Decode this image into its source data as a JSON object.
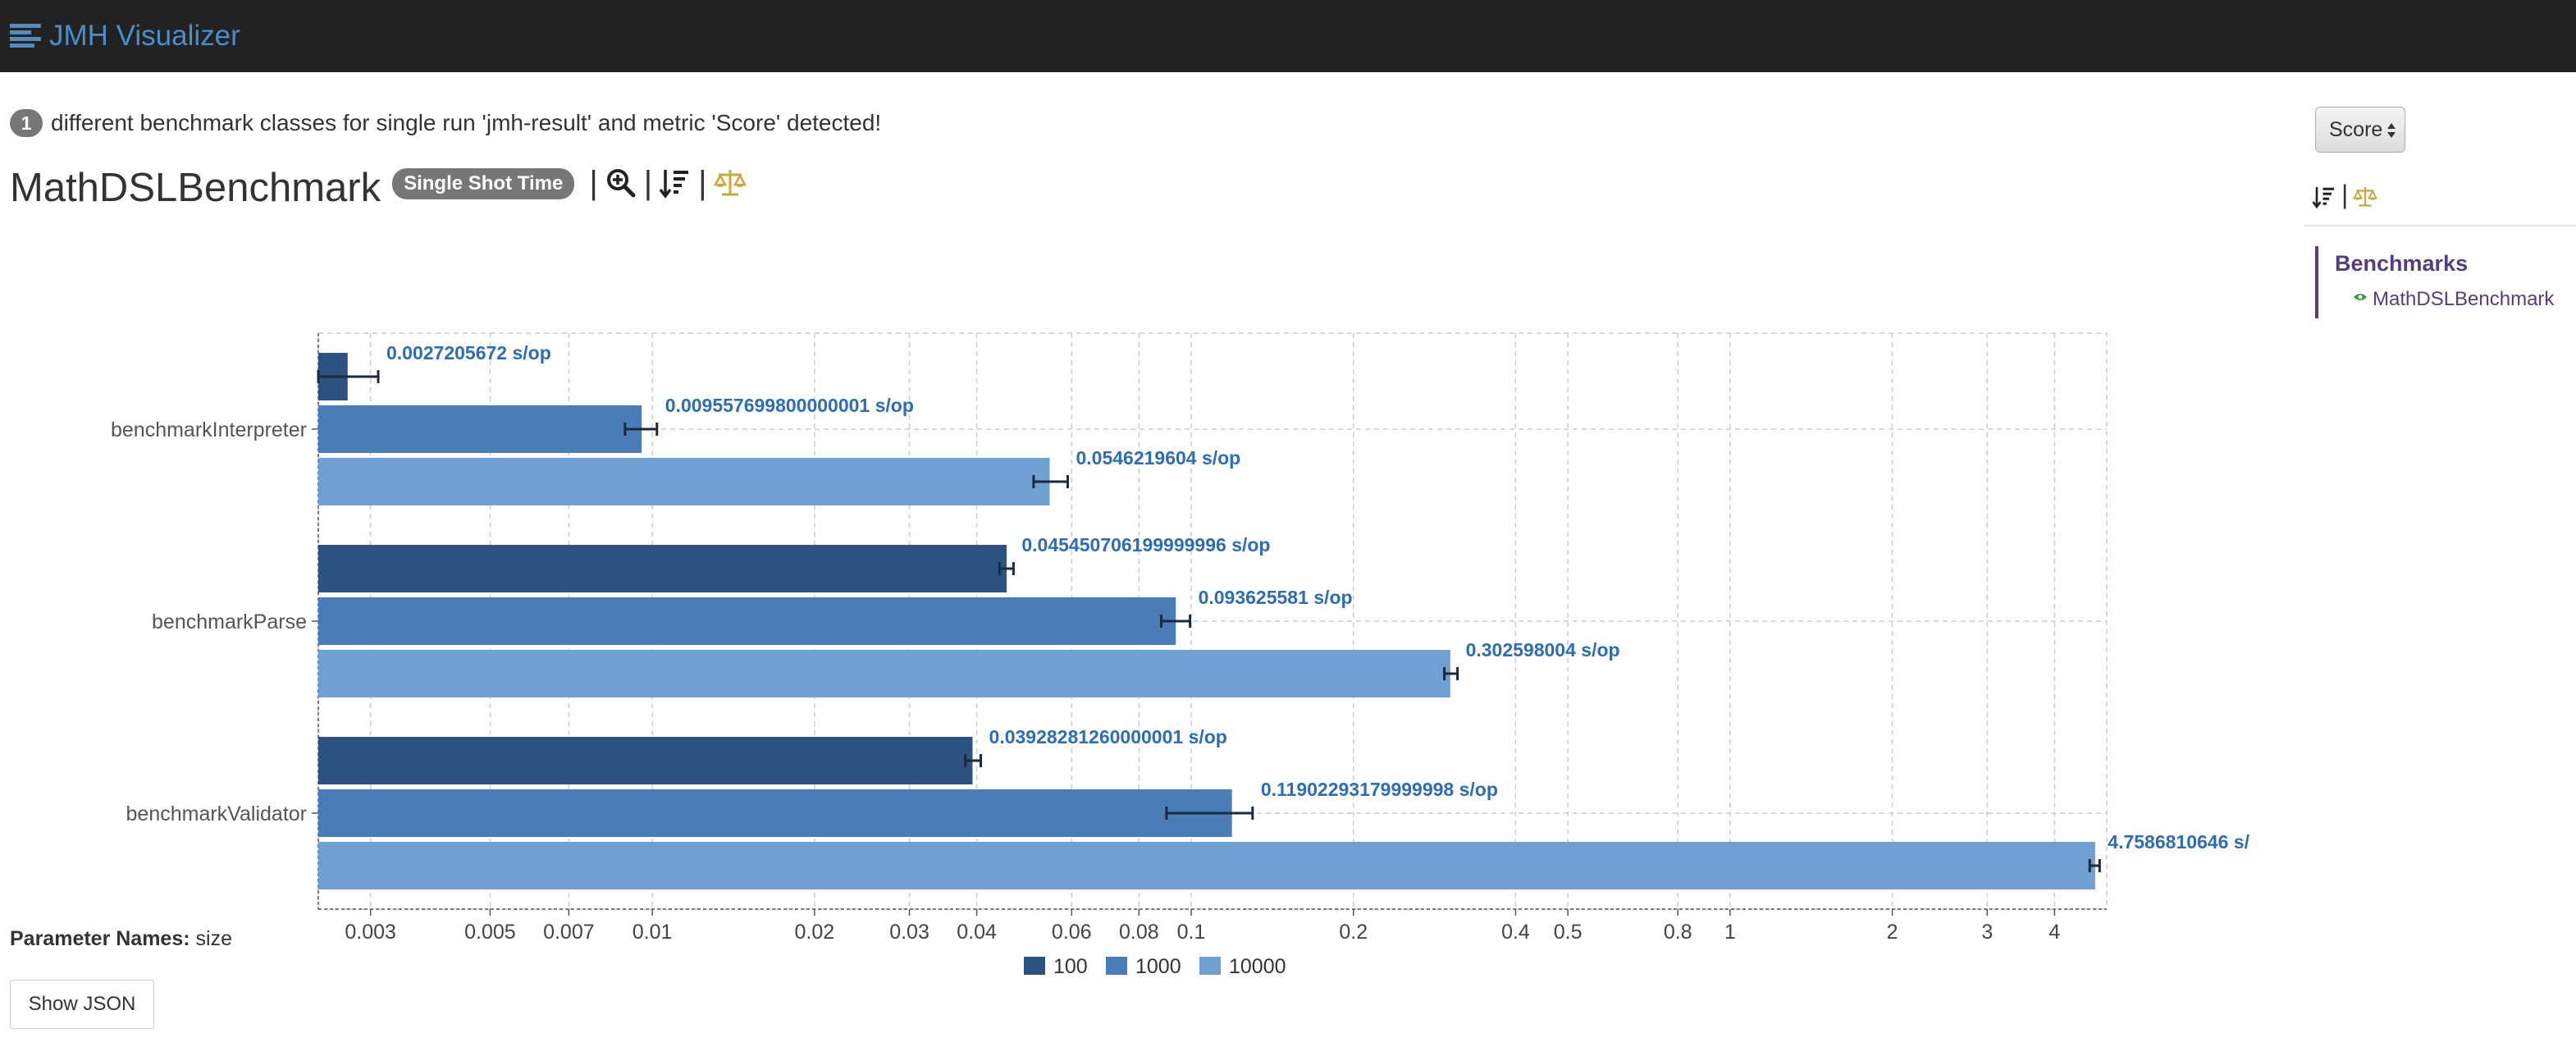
{
  "navbar": {
    "brand": "JMH Visualizer",
    "icon": "bars-icon"
  },
  "info": {
    "count": "1",
    "message": "different benchmark classes for single run 'jmh-result' and metric 'Score' detected!"
  },
  "benchmark": {
    "title": "MathDSLBenchmark",
    "mode_badge": "Single Shot Time",
    "tools": [
      "zoom-in-icon",
      "sort-icon",
      "balance-scale-icon"
    ]
  },
  "colors": {
    "series_100": "#2c5282",
    "series_1000": "#4a7db8",
    "series_10000": "#6fa0d1",
    "label_blue": "#2e6db4",
    "accent_gold": "#c8a83c",
    "purple": "#563d7c"
  },
  "chart_data": {
    "type": "bar",
    "orientation": "horizontal",
    "x_scale": "log",
    "xlim": [
      0.0024,
      5.0
    ],
    "grid": true,
    "categories": [
      "benchmarkInterpreter",
      "benchmarkParse",
      "benchmarkValidator"
    ],
    "series": [
      {
        "name": "100",
        "values": [
          0.0027205672,
          0.045450706199999996,
          0.0392828126
        ],
        "errors": [
          [
            0.0024,
            0.0031
          ],
          [
            0.0441,
            0.0468
          ],
          [
            0.0381,
            0.0407
          ]
        ]
      },
      {
        "name": "1000",
        "values": [
          0.009557699800000001,
          0.093625581,
          0.1190229318
        ],
        "errors": [
          [
            0.0089,
            0.0102
          ],
          [
            0.088,
            0.0995
          ],
          [
            0.09,
            0.13
          ]
        ]
      },
      {
        "name": "10000",
        "values": [
          0.0546219604,
          0.302598004,
          4.7586810646
        ],
        "errors": [
          [
            0.051,
            0.059
          ],
          [
            0.295,
            0.312
          ],
          [
            4.65,
            4.85
          ]
        ]
      }
    ],
    "value_labels": [
      [
        "0.0027205672 s/op",
        "0.045450706199999996 s/op",
        "0.03928281260000001 s/op"
      ],
      [
        "0.009557699800000001 s/op",
        "0.093625581 s/op",
        "0.11902293179999998 s/op"
      ],
      [
        "0.0546219604 s/op",
        "0.302598004 s/op",
        "4.7586810646 s/"
      ]
    ],
    "tick_values": [
      0.003,
      0.005,
      0.007,
      0.01,
      0.02,
      0.03,
      0.04,
      0.06,
      0.08,
      0.1,
      0.2,
      0.4,
      0.5,
      0.8,
      1,
      2,
      3,
      4
    ],
    "tick_labels": [
      "0.003",
      "0.005",
      "0.007",
      "0.01",
      "0.02",
      "0.03",
      "0.04",
      "0.06",
      "0.08",
      "0.1",
      "0.2",
      "0.4",
      "0.5",
      "0.8",
      "1",
      "2",
      "3",
      "4"
    ],
    "legend": [
      "100",
      "1000",
      "10000"
    ],
    "legend_position": "bottom-center"
  },
  "params": {
    "label": "Parameter Names:",
    "value": "size"
  },
  "buttons": {
    "show_json": "Show JSON"
  },
  "sidebar": {
    "select_value": "Score",
    "section_title": "Benchmarks",
    "items": [
      "MathDSLBenchmark"
    ]
  }
}
